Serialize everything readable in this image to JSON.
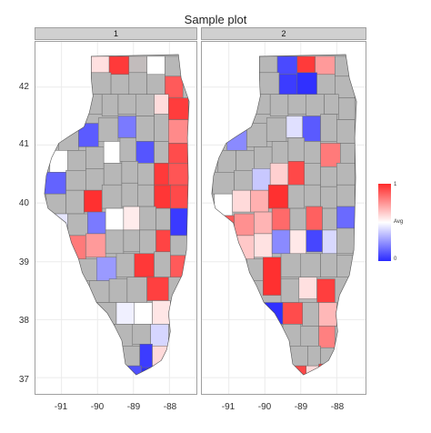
{
  "title": "Sample plot",
  "panels": [
    {
      "label": "1"
    },
    {
      "label": "2"
    }
  ],
  "y_ticks": [
    "42",
    "41",
    "40",
    "39",
    "38",
    "37"
  ],
  "x_ticks": [
    "-91",
    "-90",
    "-89",
    "-88"
  ],
  "legend": {
    "title": "Avg",
    "max": "1",
    "min": "0"
  },
  "colors": {
    "high": "#ff2a2a",
    "mid": "#ffffff",
    "low": "#2a2aff",
    "missing": "#b7b7b7",
    "grid": "#ebebeb"
  }
}
